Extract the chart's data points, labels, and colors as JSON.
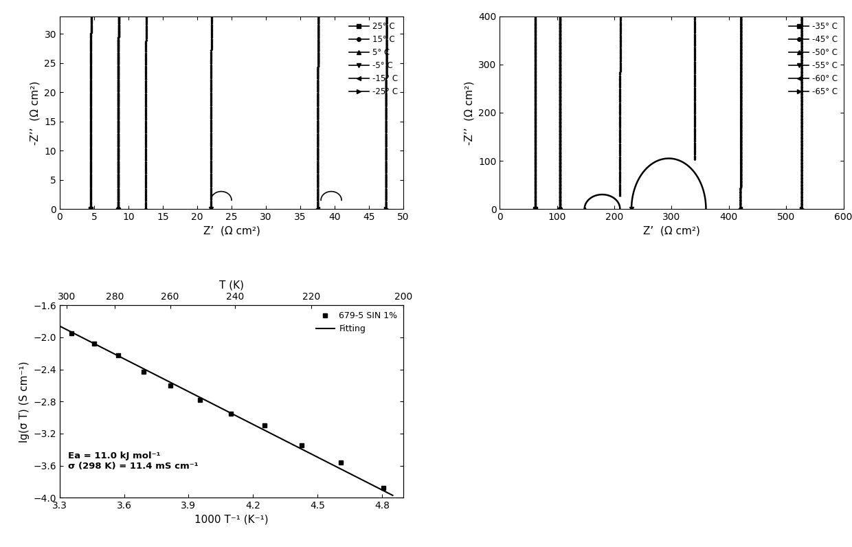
{
  "plot1": {
    "xlabel": "Z’  (Ω cm²)",
    "ylabel": "-Z’’  (Ω cm²)",
    "xlim": [
      0,
      50
    ],
    "ylim": [
      0,
      33
    ],
    "xticks": [
      0,
      5,
      10,
      15,
      20,
      25,
      30,
      35,
      40,
      45,
      50
    ],
    "yticks": [
      0,
      5,
      10,
      15,
      20,
      25,
      30
    ],
    "curves": [
      {
        "label": "25° C",
        "x0": 4.5,
        "marker": "s",
        "has_bump": false
      },
      {
        "label": "15° C",
        "x0": 8.5,
        "marker": "o",
        "has_bump": false
      },
      {
        "label": "5° C",
        "x0": 12.5,
        "marker": "^",
        "has_bump": false
      },
      {
        "label": "-5° C",
        "x0": 22.0,
        "marker": "v",
        "has_bump": true,
        "bump_x": 23.5,
        "bump_y": 1.5,
        "bump_r": 1.5
      },
      {
        "label": "-15° C",
        "x0": 37.5,
        "marker": "<",
        "has_bump": true,
        "bump_x": 39.5,
        "bump_y": 1.5,
        "bump_r": 1.5
      },
      {
        "label": "-25° C",
        "x0": 47.5,
        "marker": ">",
        "has_bump": false
      }
    ]
  },
  "plot2": {
    "xlabel": "Z’  (Ω cm²)",
    "ylabel": "-Z’’  (Ω cm²)",
    "xlim": [
      0,
      600
    ],
    "ylim": [
      0,
      400
    ],
    "xticks": [
      0,
      100,
      200,
      300,
      400,
      500,
      600
    ],
    "yticks": [
      0,
      100,
      200,
      300,
      400
    ],
    "curves": [
      {
        "label": "-35° C",
        "x0": 62,
        "marker": "s",
        "has_arc": false
      },
      {
        "label": "-45° C",
        "x0": 105,
        "marker": "o",
        "has_arc": false
      },
      {
        "label": "-50° C",
        "x0": 148,
        "marker": "^",
        "has_arc": true,
        "arc_x1": 148,
        "arc_x2": 210,
        "arc_peak_y": 30,
        "vert_x": 210
      },
      {
        "label": "-55° C",
        "x0": 230,
        "marker": "v",
        "has_arc": true,
        "arc_x1": 230,
        "arc_x2": 360,
        "arc_peak_y": 105,
        "vert_x": 340
      },
      {
        "label": "-60° C",
        "x0": 420,
        "marker": "<",
        "has_arc": false
      },
      {
        "label": "-65° C",
        "x0": 527,
        "marker": ">",
        "has_arc": false
      }
    ]
  },
  "plot3": {
    "xlabel": "1000 T⁻¹ (K⁻¹)",
    "ylabel": "lg(σ T) (S cm⁻¹)",
    "xlabel_top": "T (K)",
    "xlim": [
      3.3,
      4.9
    ],
    "ylim": [
      -4.0,
      -1.6
    ],
    "xticks": [
      3.3,
      3.6,
      3.9,
      4.2,
      4.5,
      4.8
    ],
    "yticks": [
      -4.0,
      -3.6,
      -3.2,
      -2.8,
      -2.4,
      -2.0,
      -1.6
    ],
    "xticks_top_vals": [
      300,
      280,
      260,
      240,
      220,
      200
    ],
    "data_x": [
      3.354,
      3.46,
      3.571,
      3.69,
      3.817,
      3.953,
      4.098,
      4.255,
      4.425,
      4.608,
      4.808
    ],
    "data_y": [
      -1.95,
      -2.08,
      -2.22,
      -2.43,
      -2.6,
      -2.78,
      -2.95,
      -3.1,
      -3.35,
      -3.56,
      -3.88
    ],
    "fit_x": [
      3.3,
      4.85
    ],
    "fit_y": [
      -1.86,
      -3.97
    ],
    "annotation_line1": "Ea = 11.0 kJ mol⁻¹",
    "annotation_line2": "σ (298 K) = 11.4 mS cm⁻¹",
    "legend_data_label": "679-5 SIN 1%",
    "legend_fit_label": "Fitting"
  }
}
